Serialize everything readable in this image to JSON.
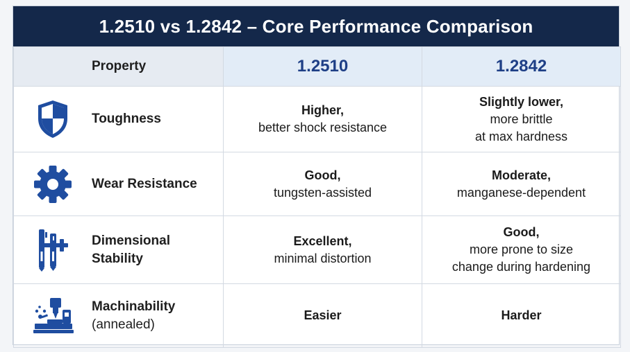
{
  "title": "1.2510 vs 1.2842 – Core Performance Comparison",
  "colors": {
    "header_bg": "#14284a",
    "grade_header_bg": "#e2ecf7",
    "grade_text": "#1e3f86",
    "icon_blue": "#1f4da0"
  },
  "columns": {
    "property": "Property",
    "grade_a": "1.2510",
    "grade_b": "1.2842"
  },
  "rows": [
    {
      "icon": "shield-icon",
      "label": [
        "Toughness"
      ],
      "a": [
        "Higher,",
        "better shock resistance"
      ],
      "b": [
        "Slightly lower,",
        "more brittle",
        "at max hardness"
      ]
    },
    {
      "icon": "gear-icon",
      "label": [
        "Wear Resistance"
      ],
      "a": [
        "Good,",
        "tungsten-assisted"
      ],
      "b": [
        "Moderate,",
        "manganese-dependent"
      ]
    },
    {
      "icon": "caliper-icon",
      "label": [
        "Dimensional",
        "Stability"
      ],
      "a": [
        "Excellent,",
        "minimal distortion"
      ],
      "b": [
        "Good,",
        "more prone to size",
        "change during hardening"
      ]
    },
    {
      "icon": "machining-icon",
      "label": [
        "Machinability",
        "(annealed)"
      ],
      "a": [
        "Easier"
      ],
      "b": [
        "Harder"
      ]
    }
  ]
}
